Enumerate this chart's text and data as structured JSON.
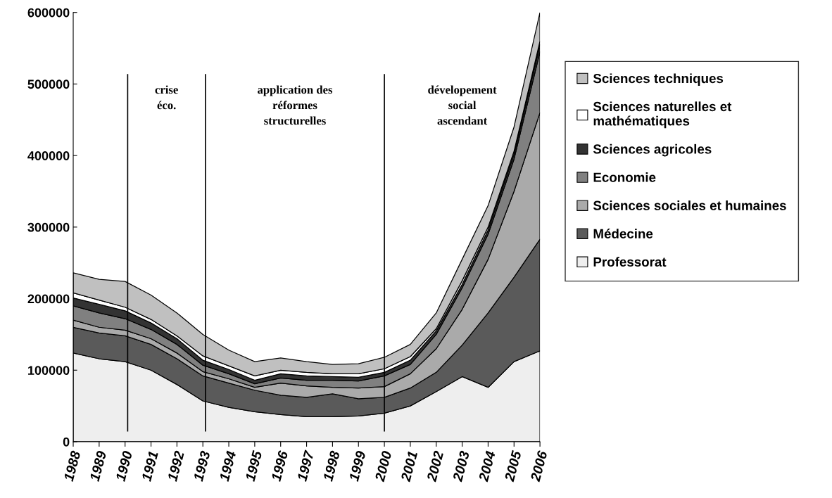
{
  "chart_data": {
    "type": "area",
    "stacked": true,
    "x": [
      1988,
      1989,
      1990,
      1991,
      1992,
      1993,
      1994,
      1995,
      1996,
      1997,
      1998,
      1999,
      2000,
      2001,
      2002,
      2003,
      2004,
      2005,
      2006
    ],
    "xlim": [
      1988,
      2006
    ],
    "xticks": [
      1988,
      1989,
      1990,
      1991,
      1992,
      1993,
      1994,
      1995,
      1996,
      1997,
      1998,
      1999,
      2000,
      2001,
      2002,
      2003,
      2004,
      2005,
      2006
    ],
    "ylim": [
      0,
      600000
    ],
    "yticks": [
      0,
      100000,
      200000,
      300000,
      400000,
      500000,
      600000
    ],
    "grid": false,
    "legend": "right",
    "series": [
      {
        "name": "Professorat",
        "color": "#eeeeee",
        "values": [
          124000,
          116000,
          112000,
          100000,
          80000,
          57000,
          48000,
          42000,
          38000,
          35000,
          35000,
          36000,
          40000,
          50000,
          70000,
          91000,
          76000,
          112000,
          127000
        ]
      },
      {
        "name": "Médecine",
        "color": "#5a5a5a",
        "values": [
          36000,
          36000,
          36000,
          36000,
          36000,
          35000,
          34000,
          30000,
          27000,
          27000,
          32000,
          24000,
          22000,
          25000,
          27000,
          44000,
          104000,
          118000,
          156000
        ]
      },
      {
        "name": "Sciences sociales et humaines",
        "color": "#aaaaaa",
        "values": [
          10000,
          8000,
          8000,
          8000,
          8000,
          6000,
          6000,
          4000,
          17000,
          16000,
          9000,
          15000,
          15000,
          20000,
          33000,
          50000,
          75000,
          120000,
          177000
        ]
      },
      {
        "name": "Economie",
        "color": "#808080",
        "values": [
          20000,
          20000,
          16000,
          13000,
          12000,
          9000,
          7000,
          5000,
          7000,
          8000,
          10000,
          10000,
          15000,
          13000,
          20000,
          30000,
          35000,
          45000,
          85000
        ]
      },
      {
        "name": "Sciences agricoles",
        "color": "#333333",
        "values": [
          11000,
          12000,
          11000,
          9000,
          8000,
          7000,
          6000,
          5000,
          6000,
          6000,
          5000,
          5000,
          5000,
          6000,
          5000,
          5000,
          6000,
          7000,
          10000
        ]
      },
      {
        "name": "Sciences naturelles et mathématiques",
        "color": "#ffffff",
        "values": [
          7000,
          6000,
          5000,
          5000,
          4000,
          6000,
          5000,
          6000,
          5000,
          5000,
          4000,
          5000,
          5000,
          5000,
          3000,
          5000,
          4000,
          4000,
          5000
        ]
      },
      {
        "name": "Sciences techniques",
        "color": "#c0c0c0",
        "values": [
          28000,
          29000,
          36000,
          34000,
          32000,
          30000,
          22000,
          20000,
          17000,
          15000,
          13000,
          14000,
          16000,
          17000,
          22000,
          30000,
          30000,
          34000,
          40000
        ]
      }
    ],
    "ref_lines": [
      {
        "axis": "x",
        "value": 1990.1
      },
      {
        "axis": "x",
        "value": 1993.1
      },
      {
        "axis": "x",
        "value": 2000
      }
    ],
    "annotations": [
      "crise\néco.",
      "application des\nréformes\nstructurelles",
      "dévelopement\nsocial\nascendant"
    ]
  }
}
